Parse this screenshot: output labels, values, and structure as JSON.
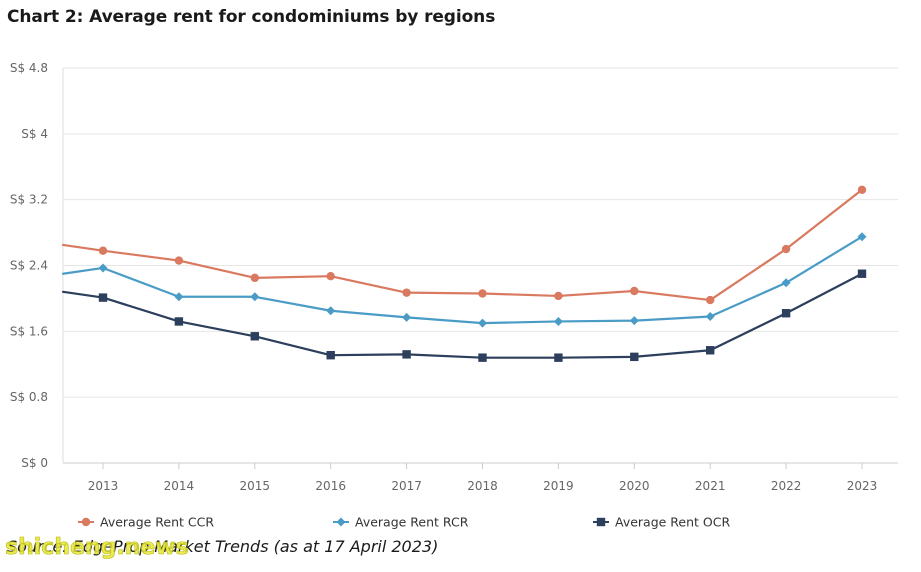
{
  "title": "Chart 2: Average rent for condominiums by regions",
  "source": "Source: EdgeProp Market Trends (as at 17 April 2023)",
  "watermark": "shicheng.news",
  "colors": {
    "ccr": "#d9795f",
    "rcr": "#4a9cc7",
    "ocr": "#2c3f5c",
    "grid": "#e6e6e6"
  },
  "chart_data": {
    "type": "line",
    "x": [
      "2013",
      "2014",
      "2015",
      "2016",
      "2017",
      "2018",
      "2019",
      "2020",
      "2021",
      "2022",
      "2023"
    ],
    "y_tick_labels": [
      "S$ 0",
      "S$ 0.8",
      "S$ 1.6",
      "S$ 2.4",
      "S$ 3.2",
      "S$ 4",
      "S$ 4.8"
    ],
    "y_ticks": [
      0,
      0.8,
      1.6,
      2.4,
      3.2,
      4.0,
      4.8
    ],
    "ylim": [
      0,
      4.8
    ],
    "grid": true,
    "legend_position": "bottom",
    "series": [
      {
        "name": "Average Rent CCR",
        "color": "#d9795f",
        "marker": "circle",
        "start_value": 2.65,
        "values": [
          2.58,
          2.46,
          2.25,
          2.27,
          2.07,
          2.06,
          2.03,
          2.09,
          1.98,
          2.6,
          3.32
        ]
      },
      {
        "name": "Average Rent RCR",
        "color": "#4a9cc7",
        "marker": "diamond",
        "start_value": 2.3,
        "values": [
          2.37,
          2.02,
          2.02,
          1.85,
          1.77,
          1.7,
          1.72,
          1.73,
          1.78,
          2.19,
          2.75
        ]
      },
      {
        "name": "Average Rent OCR",
        "color": "#2c3f5c",
        "marker": "square",
        "start_value": 2.08,
        "values": [
          2.01,
          1.72,
          1.54,
          1.31,
          1.32,
          1.28,
          1.28,
          1.29,
          1.37,
          1.82,
          2.3
        ]
      }
    ]
  }
}
